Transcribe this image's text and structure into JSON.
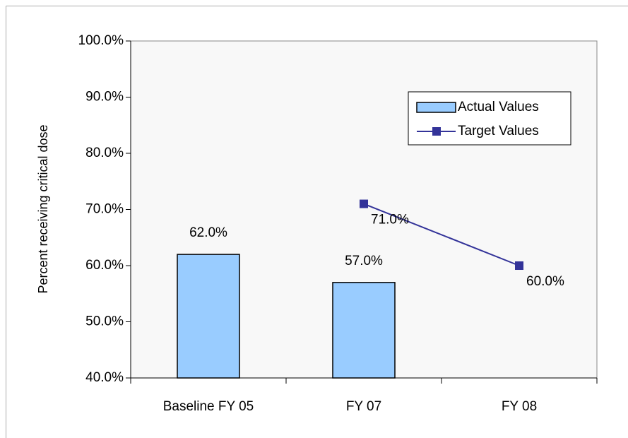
{
  "chart_data": {
    "type": "combo",
    "ylabel": "Percent receiving critical dose",
    "categories": [
      "Baseline FY 05",
      "FY 07",
      "FY 08"
    ],
    "series": [
      {
        "name": "Actual Values",
        "type": "bar",
        "color": "#99ccff",
        "values": [
          62,
          57,
          null
        ],
        "value_labels": [
          "62.0%",
          "57.0%",
          null
        ]
      },
      {
        "name": "Target Values",
        "type": "line",
        "color": "#333399",
        "values": [
          null,
          71,
          60
        ],
        "value_labels": [
          null,
          "71.0%",
          "60.0%"
        ]
      }
    ],
    "ylim": [
      40,
      100
    ],
    "yticks": [
      {
        "value": 40,
        "label": "40.0%"
      },
      {
        "value": 50,
        "label": "50.0%"
      },
      {
        "value": 60,
        "label": "60.0%"
      },
      {
        "value": 70,
        "label": "70.0%"
      },
      {
        "value": 80,
        "label": "80.0%"
      },
      {
        "value": 90,
        "label": "90.0%"
      },
      {
        "value": 100,
        "label": "100.0%"
      }
    ],
    "legend": "upper right"
  }
}
